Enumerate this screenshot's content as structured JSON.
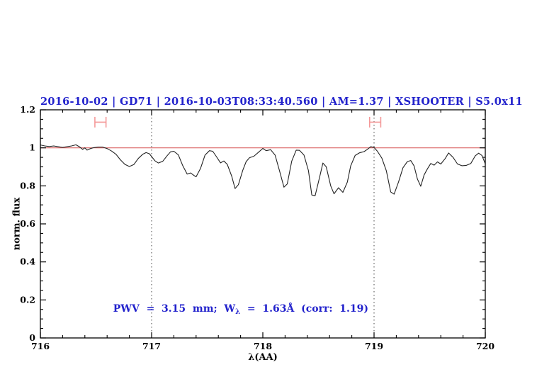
{
  "chart_data": {
    "type": "line",
    "title": "2016-10-02 | GD71 | 2016-10-03T08:33:40.560 | AM=1.37 | XSHOOTER | S5.0x11",
    "xlabel": "λ(AA)",
    "ylabel": "norm. flux",
    "xlim": [
      716,
      720
    ],
    "ylim": [
      0,
      1.2
    ],
    "x_ticks": [
      {
        "value": 716,
        "label": "716"
      },
      {
        "value": 717,
        "label": "717"
      },
      {
        "value": 718,
        "label": "718"
      },
      {
        "value": 719,
        "label": "719"
      },
      {
        "value": 720,
        "label": "720"
      }
    ],
    "x_minor_step": 0.2,
    "y_ticks": [
      {
        "value": 0,
        "label": "0"
      },
      {
        "value": 0.2,
        "label": "0.2"
      },
      {
        "value": 0.4,
        "label": "0.4"
      },
      {
        "value": 0.6,
        "label": "0.6"
      },
      {
        "value": 0.8,
        "label": "0.8"
      },
      {
        "value": 1,
        "label": "1"
      },
      {
        "value": 1.2,
        "label": "1.2"
      }
    ],
    "y_minor_step": 0.05,
    "grid": "off",
    "dotted_vlines": [
      717,
      719
    ],
    "reference_line": {
      "y": 1.0
    },
    "range_markers": [
      {
        "x_start": 716.49,
        "x_end": 716.59,
        "y": 1.135,
        "cap_half_height": 0.028
      },
      {
        "x_start": 718.96,
        "x_end": 719.06,
        "y": 1.135,
        "cap_half_height": 0.028
      }
    ],
    "annotation": {
      "prefix": "PWV  =  3.15  mm;  W",
      "sub": "λ",
      "suffix": "  =  1.63Å  (corr:  1.19)",
      "x": 716.53,
      "y": 0.21
    },
    "colors": {
      "title": "#2222cc",
      "annotation": "#2222cc",
      "spectrum": "#222222",
      "reference_line": "#d96060",
      "range_marker": "#f49898",
      "dotted_line": "#444444",
      "frame": "#000000"
    },
    "series": [
      {
        "name": "normalized spectrum",
        "points": [
          [
            716.0,
            1.015
          ],
          [
            716.04,
            1.01
          ],
          [
            716.08,
            1.007
          ],
          [
            716.12,
            1.01
          ],
          [
            716.16,
            1.006
          ],
          [
            716.2,
            1.002
          ],
          [
            716.24,
            1.006
          ],
          [
            716.28,
            1.01
          ],
          [
            716.32,
            1.016
          ],
          [
            716.35,
            1.006
          ],
          [
            716.38,
            0.992
          ],
          [
            716.4,
            1.0
          ],
          [
            716.42,
            0.988
          ],
          [
            716.45,
            0.996
          ],
          [
            716.48,
            1.001
          ],
          [
            716.52,
            1.004
          ],
          [
            716.56,
            1.004
          ],
          [
            716.6,
            0.996
          ],
          [
            716.64,
            0.983
          ],
          [
            716.68,
            0.966
          ],
          [
            716.72,
            0.937
          ],
          [
            716.76,
            0.913
          ],
          [
            716.8,
            0.902
          ],
          [
            716.84,
            0.912
          ],
          [
            716.88,
            0.944
          ],
          [
            716.92,
            0.966
          ],
          [
            716.95,
            0.975
          ],
          [
            716.98,
            0.969
          ],
          [
            717.0,
            0.954
          ],
          [
            717.03,
            0.932
          ],
          [
            717.06,
            0.92
          ],
          [
            717.1,
            0.929
          ],
          [
            717.14,
            0.959
          ],
          [
            717.17,
            0.979
          ],
          [
            717.2,
            0.982
          ],
          [
            717.24,
            0.963
          ],
          [
            717.28,
            0.906
          ],
          [
            717.32,
            0.862
          ],
          [
            717.35,
            0.868
          ],
          [
            717.38,
            0.855
          ],
          [
            717.4,
            0.848
          ],
          [
            717.44,
            0.892
          ],
          [
            717.48,
            0.962
          ],
          [
            717.52,
            0.985
          ],
          [
            717.55,
            0.982
          ],
          [
            717.58,
            0.956
          ],
          [
            717.62,
            0.921
          ],
          [
            717.65,
            0.931
          ],
          [
            717.68,
            0.913
          ],
          [
            717.72,
            0.852
          ],
          [
            717.75,
            0.786
          ],
          [
            717.78,
            0.806
          ],
          [
            717.82,
            0.882
          ],
          [
            717.85,
            0.928
          ],
          [
            717.88,
            0.948
          ],
          [
            717.92,
            0.956
          ],
          [
            717.96,
            0.976
          ],
          [
            718.0,
            0.997
          ],
          [
            718.03,
            0.985
          ],
          [
            718.07,
            0.99
          ],
          [
            718.11,
            0.962
          ],
          [
            718.15,
            0.88
          ],
          [
            718.19,
            0.793
          ],
          [
            718.22,
            0.81
          ],
          [
            718.26,
            0.93
          ],
          [
            718.3,
            0.988
          ],
          [
            718.33,
            0.987
          ],
          [
            718.37,
            0.962
          ],
          [
            718.41,
            0.88
          ],
          [
            718.44,
            0.752
          ],
          [
            718.47,
            0.748
          ],
          [
            718.51,
            0.845
          ],
          [
            718.54,
            0.92
          ],
          [
            718.57,
            0.9
          ],
          [
            718.61,
            0.8
          ],
          [
            718.64,
            0.758
          ],
          [
            718.68,
            0.79
          ],
          [
            718.72,
            0.766
          ],
          [
            718.76,
            0.82
          ],
          [
            718.79,
            0.905
          ],
          [
            718.83,
            0.96
          ],
          [
            718.87,
            0.974
          ],
          [
            718.91,
            0.98
          ],
          [
            718.94,
            0.992
          ],
          [
            718.97,
            1.006
          ],
          [
            719.0,
            1.002
          ],
          [
            719.03,
            0.982
          ],
          [
            719.07,
            0.946
          ],
          [
            719.11,
            0.88
          ],
          [
            719.15,
            0.768
          ],
          [
            719.18,
            0.756
          ],
          [
            719.22,
            0.82
          ],
          [
            719.26,
            0.895
          ],
          [
            719.3,
            0.928
          ],
          [
            719.33,
            0.933
          ],
          [
            719.36,
            0.905
          ],
          [
            719.39,
            0.836
          ],
          [
            719.42,
            0.798
          ],
          [
            719.45,
            0.858
          ],
          [
            719.48,
            0.89
          ],
          [
            719.51,
            0.918
          ],
          [
            719.54,
            0.909
          ],
          [
            719.57,
            0.926
          ],
          [
            719.6,
            0.915
          ],
          [
            719.64,
            0.944
          ],
          [
            719.67,
            0.973
          ],
          [
            719.71,
            0.95
          ],
          [
            719.75,
            0.915
          ],
          [
            719.79,
            0.906
          ],
          [
            719.83,
            0.908
          ],
          [
            719.87,
            0.918
          ],
          [
            719.91,
            0.958
          ],
          [
            719.94,
            0.972
          ],
          [
            719.97,
            0.96
          ],
          [
            720.0,
            0.916
          ]
        ]
      }
    ]
  }
}
